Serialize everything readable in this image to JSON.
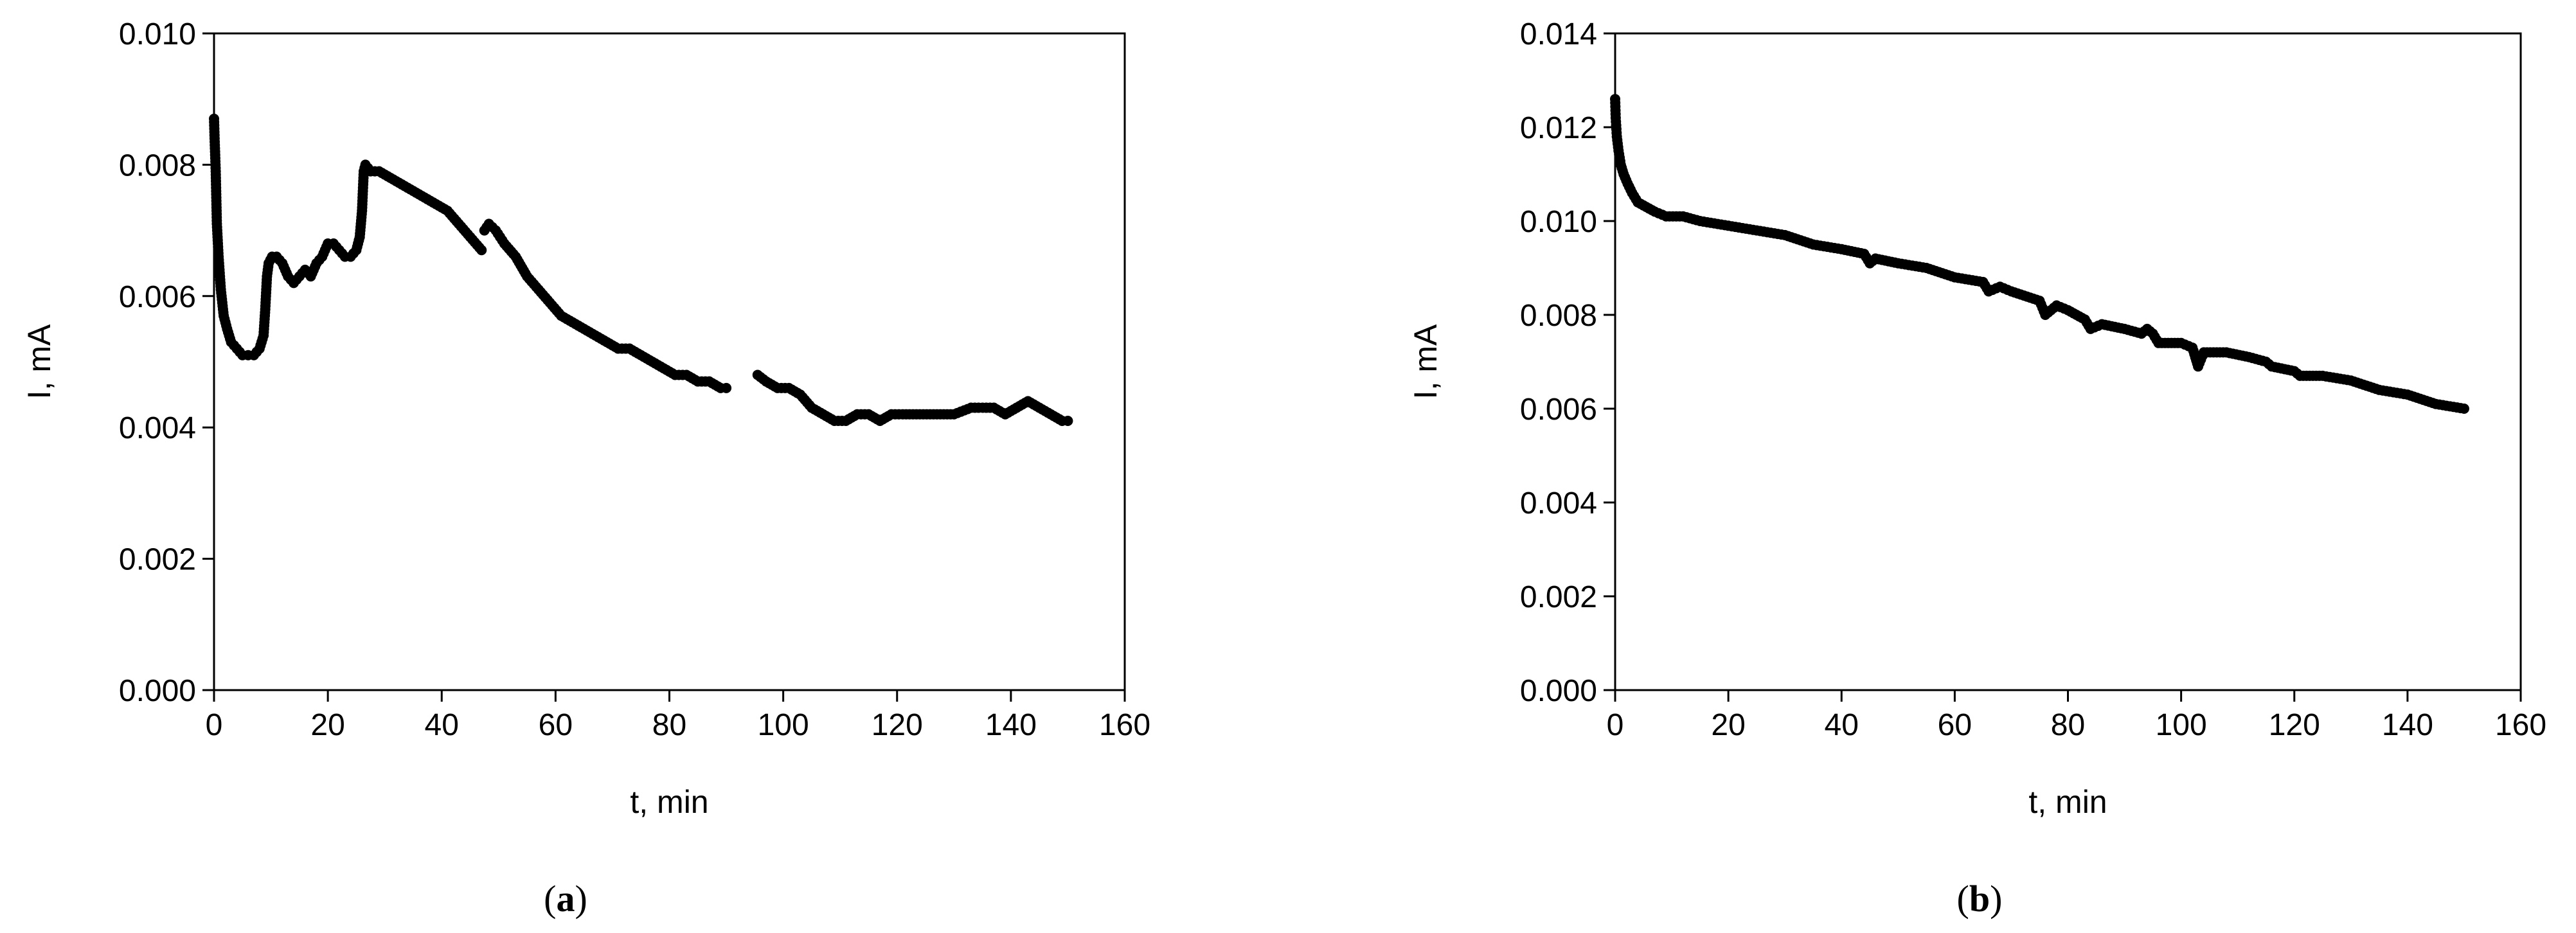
{
  "chart_data": [
    {
      "id": "a",
      "type": "scatter",
      "panel_label": "a",
      "xlabel": "t, min",
      "ylabel": "I, mA",
      "xlim": [
        0,
        160
      ],
      "ylim": [
        0.0,
        0.01
      ],
      "xticks": [
        "0",
        "20",
        "40",
        "60",
        "80",
        "100",
        "120",
        "140",
        "160"
      ],
      "yticks": [
        "0.000",
        "0.002",
        "0.004",
        "0.006",
        "0.008",
        "0.010"
      ],
      "grid": false,
      "marker_color": "#000000",
      "series": [
        {
          "segments": [
            [
              [
                0.0,
                0.0087
              ],
              [
                0.1,
                0.0084
              ],
              [
                0.3,
                0.0079
              ],
              [
                0.5,
                0.0071
              ],
              [
                0.8,
                0.0066
              ],
              [
                1.2,
                0.0061
              ],
              [
                1.7,
                0.0057
              ],
              [
                2.3,
                0.0055
              ],
              [
                3.0,
                0.0053
              ],
              [
                4.0,
                0.0052
              ],
              [
                5.0,
                0.0051
              ],
              [
                6.0,
                0.0051
              ],
              [
                7.0,
                0.0051
              ],
              [
                8.0,
                0.0052
              ],
              [
                8.7,
                0.0054
              ],
              [
                9.0,
                0.0058
              ],
              [
                9.3,
                0.0063
              ],
              [
                9.6,
                0.0065
              ],
              [
                10.2,
                0.0066
              ],
              [
                11.0,
                0.0066
              ],
              [
                12.0,
                0.0065
              ],
              [
                13.0,
                0.0063
              ],
              [
                14.0,
                0.0062
              ],
              [
                15.0,
                0.0063
              ],
              [
                16.0,
                0.0064
              ],
              [
                17.0,
                0.0063
              ],
              [
                18.0,
                0.0065
              ],
              [
                19.0,
                0.0066
              ],
              [
                20.0,
                0.0068
              ],
              [
                21.0,
                0.0068
              ],
              [
                22.0,
                0.0067
              ],
              [
                23.0,
                0.0066
              ],
              [
                24.0,
                0.0066
              ],
              [
                25.0,
                0.0067
              ],
              [
                25.6,
                0.0069
              ],
              [
                26.0,
                0.0073
              ],
              [
                26.3,
                0.0079
              ],
              [
                26.6,
                0.008
              ],
              [
                27.5,
                0.0079
              ],
              [
                29.0,
                0.0079
              ],
              [
                31.0,
                0.0078
              ],
              [
                33.0,
                0.0077
              ],
              [
                35.0,
                0.0076
              ],
              [
                37.0,
                0.0075
              ],
              [
                39.0,
                0.0074
              ],
              [
                41.0,
                0.0073
              ],
              [
                43.0,
                0.0071
              ],
              [
                45.0,
                0.0069
              ],
              [
                47.0,
                0.0067
              ]
            ],
            [
              [
                47.5,
                0.007
              ],
              [
                48.3,
                0.0071
              ],
              [
                49.5,
                0.007
              ],
              [
                51.0,
                0.0068
              ],
              [
                53.0,
                0.0066
              ],
              [
                55.0,
                0.0063
              ],
              [
                57.0,
                0.0061
              ],
              [
                59.0,
                0.0059
              ],
              [
                61.0,
                0.0057
              ],
              [
                63.0,
                0.0056
              ],
              [
                65.0,
                0.0055
              ],
              [
                67.0,
                0.0054
              ],
              [
                69.0,
                0.0053
              ],
              [
                71.0,
                0.0052
              ],
              [
                73.0,
                0.0052
              ],
              [
                75.0,
                0.0051
              ],
              [
                77.0,
                0.005
              ],
              [
                79.0,
                0.0049
              ],
              [
                81.0,
                0.0048
              ],
              [
                83.0,
                0.0048
              ],
              [
                85.0,
                0.0047
              ],
              [
                87.0,
                0.0047
              ],
              [
                89.0,
                0.0046
              ],
              [
                90.0,
                0.0046
              ]
            ],
            [
              [
                95.5,
                0.0048
              ],
              [
                97.0,
                0.0047
              ],
              [
                99.0,
                0.0046
              ],
              [
                101.0,
                0.0046
              ],
              [
                103.0,
                0.0045
              ],
              [
                105.0,
                0.0043
              ],
              [
                107.0,
                0.0042
              ],
              [
                109.0,
                0.0041
              ],
              [
                111.0,
                0.0041
              ],
              [
                113.0,
                0.0042
              ],
              [
                115.0,
                0.0042
              ],
              [
                117.0,
                0.0041
              ],
              [
                119.0,
                0.0042
              ],
              [
                121.0,
                0.0042
              ],
              [
                124.0,
                0.0042
              ],
              [
                127.0,
                0.0042
              ],
              [
                130.0,
                0.0042
              ],
              [
                133.0,
                0.0043
              ],
              [
                135.0,
                0.0043
              ],
              [
                137.0,
                0.0043
              ],
              [
                139.0,
                0.0042
              ],
              [
                141.0,
                0.0043
              ],
              [
                143.0,
                0.0044
              ],
              [
                145.0,
                0.0043
              ],
              [
                147.0,
                0.0042
              ],
              [
                149.0,
                0.0041
              ],
              [
                150.0,
                0.0041
              ]
            ]
          ]
        }
      ]
    },
    {
      "id": "b",
      "type": "scatter",
      "panel_label": "b",
      "xlabel": "t, min",
      "ylabel": "I, mA",
      "xlim": [
        0,
        160
      ],
      "ylim": [
        0.0,
        0.014
      ],
      "xticks": [
        "0",
        "20",
        "40",
        "60",
        "80",
        "100",
        "120",
        "140",
        "160"
      ],
      "yticks": [
        "0.000",
        "0.002",
        "0.004",
        "0.006",
        "0.008",
        "0.010",
        "0.012",
        "0.014"
      ],
      "grid": false,
      "marker_color": "#000000",
      "series": [
        {
          "segments": [
            [
              [
                0.0,
                0.0126
              ],
              [
                0.1,
                0.0122
              ],
              [
                0.3,
                0.0118
              ],
              [
                0.6,
                0.0115
              ],
              [
                1.0,
                0.0112
              ],
              [
                1.5,
                0.011
              ],
              [
                2.2,
                0.0108
              ],
              [
                3.0,
                0.0106
              ],
              [
                4.0,
                0.0104
              ],
              [
                5.5,
                0.0103
              ],
              [
                7.0,
                0.0102
              ],
              [
                9.0,
                0.0101
              ],
              [
                12.0,
                0.0101
              ],
              [
                15.0,
                0.01
              ],
              [
                20.0,
                0.0099
              ],
              [
                25.0,
                0.0098
              ],
              [
                30.0,
                0.0097
              ],
              [
                35.0,
                0.0095
              ],
              [
                40.0,
                0.0094
              ],
              [
                44.0,
                0.0093
              ],
              [
                45.0,
                0.0091
              ],
              [
                46.0,
                0.0092
              ],
              [
                50.0,
                0.0091
              ],
              [
                55.0,
                0.009
              ],
              [
                60.0,
                0.0088
              ],
              [
                65.0,
                0.0087
              ],
              [
                66.0,
                0.0085
              ],
              [
                68.0,
                0.0086
              ],
              [
                70.0,
                0.0085
              ],
              [
                75.0,
                0.0083
              ],
              [
                76.0,
                0.008
              ],
              [
                78.0,
                0.0082
              ],
              [
                80.0,
                0.0081
              ],
              [
                83.0,
                0.0079
              ],
              [
                84.0,
                0.0077
              ],
              [
                86.0,
                0.0078
              ],
              [
                90.0,
                0.0077
              ],
              [
                93.0,
                0.0076
              ],
              [
                94.0,
                0.0077
              ],
              [
                95.0,
                0.0076
              ],
              [
                96.0,
                0.0074
              ],
              [
                100.0,
                0.0074
              ],
              [
                102.0,
                0.0073
              ],
              [
                103.0,
                0.0069
              ],
              [
                104.0,
                0.0072
              ],
              [
                108.0,
                0.0072
              ],
              [
                112.0,
                0.0071
              ],
              [
                115.0,
                0.007
              ],
              [
                116.0,
                0.0069
              ],
              [
                120.0,
                0.0068
              ],
              [
                121.0,
                0.0067
              ],
              [
                125.0,
                0.0067
              ],
              [
                130.0,
                0.0066
              ],
              [
                135.0,
                0.0064
              ],
              [
                140.0,
                0.0063
              ],
              [
                145.0,
                0.0061
              ],
              [
                150.0,
                0.006
              ]
            ]
          ]
        }
      ]
    }
  ]
}
